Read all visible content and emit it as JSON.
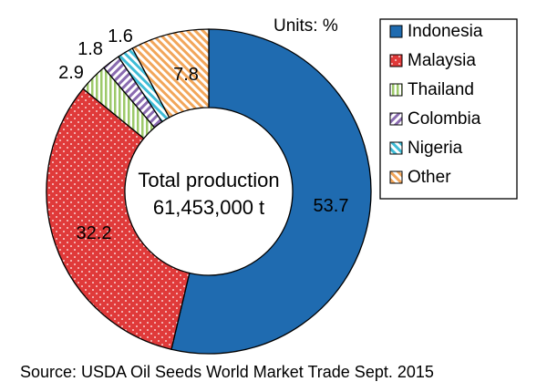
{
  "chart_data": {
    "type": "pie",
    "donut": true,
    "units_label": "Units: %",
    "center_text": [
      "Total production",
      "61,453,000 t"
    ],
    "source": "Source: USDA  Oil Seeds World Market Trade Sept. 2015",
    "legend_position": "right",
    "slices": [
      {
        "name": "Indonesia",
        "value": 53.7,
        "label": "53.7",
        "color": "#1f6bb0"
      },
      {
        "name": "Malaysia",
        "value": 32.2,
        "label": "32.2",
        "color": "#e03a3a"
      },
      {
        "name": "Thailand",
        "value": 2.9,
        "label": "2.9",
        "color": "#9dc96a"
      },
      {
        "name": "Colombia",
        "value": 1.8,
        "label": "1.8",
        "color": "#8a6bb0"
      },
      {
        "name": "Nigeria",
        "value": 1.6,
        "label": "1.6",
        "color": "#3fbcd6"
      },
      {
        "name": "Other",
        "value": 7.8,
        "label": "7.8",
        "color": "#f2a65a"
      }
    ]
  }
}
